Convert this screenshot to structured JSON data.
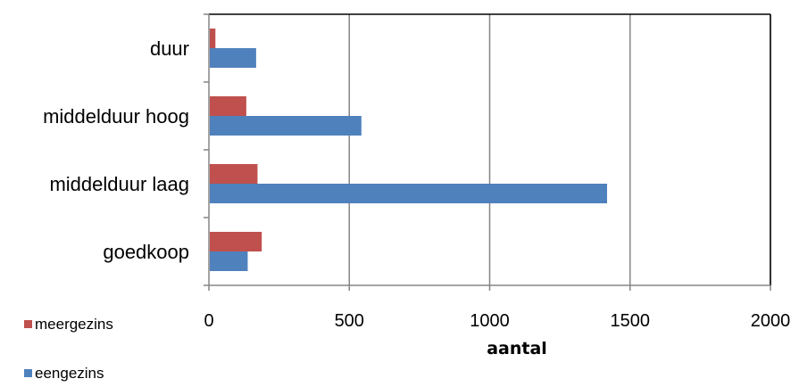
{
  "chart_data": {
    "type": "bar",
    "orientation": "horizontal",
    "categories": [
      "goedkoop",
      "middelduur laag",
      "middelduur hoog",
      "duur"
    ],
    "series": [
      {
        "name": "meergezins",
        "color": "#C0504D",
        "values": [
          185,
          170,
          130,
          20
        ]
      },
      {
        "name": "eengezins",
        "color": "#4F81BD",
        "values": [
          135,
          1415,
          540,
          165
        ]
      }
    ],
    "xlabel": "aantal",
    "xlim": [
      0,
      2000
    ],
    "xticks": [
      0,
      500,
      1000,
      1500,
      2000
    ],
    "grid": "vertical",
    "legend_position": "bottom-left"
  }
}
